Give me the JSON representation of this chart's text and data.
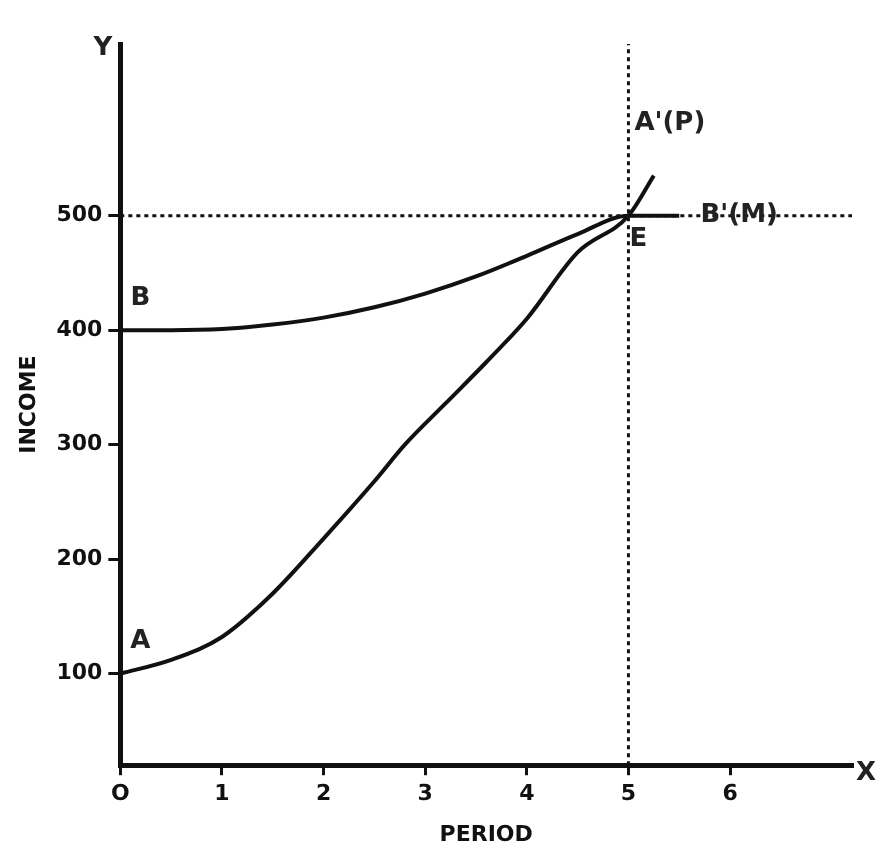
{
  "chart_data": {
    "type": "line",
    "xlabel": "PERIOD",
    "ylabel": "INCOME",
    "series": [
      {
        "color": "#111111",
        "x": [
          0,
          0.5,
          1,
          1.5,
          2,
          2.5,
          2.8,
          3.2,
          3.6,
          4,
          4.5,
          5,
          5.25
        ],
        "values": [
          100,
          112,
          132,
          170,
          218,
          268,
          300,
          336,
          372,
          410,
          468,
          500,
          535
        ]
      },
      {
        "color": "#111111",
        "x": [
          0,
          0.5,
          1,
          1.5,
          2,
          2.5,
          3,
          3.5,
          4,
          4.5,
          5,
          5.5
        ],
        "values": [
          400,
          400,
          401,
          405,
          411,
          420,
          432,
          447,
          465,
          484,
          500,
          500
        ]
      }
    ],
    "xlim": [
      0,
      7.2
    ],
    "ylim": [
      20,
      650
    ],
    "xticks": [
      {
        "value": 0,
        "label": "O"
      },
      1,
      2,
      3,
      4,
      5,
      6
    ],
    "yticks": [
      100,
      200,
      300,
      400,
      500
    ],
    "ref_lines": [
      {
        "axis": "y",
        "value": 500,
        "line_style": "dotted",
        "color": "#111111"
      },
      {
        "axis": "x",
        "value": 5,
        "line_style": "dotted",
        "color": "#111111"
      }
    ],
    "annotations": [
      {
        "text": "A",
        "x": 0,
        "y": 100
      },
      {
        "text": "B",
        "x": 0,
        "y": 400
      },
      {
        "text": "E",
        "x": 5,
        "y": 500
      },
      {
        "text": "A'(P)",
        "x": 5.25,
        "y": 535
      },
      {
        "text": "B'(M)",
        "x": 5.5,
        "y": 500
      },
      "Y",
      "X"
    ],
    "grid": false,
    "legend": false,
    "marker": "none",
    "line_style": "solid"
  }
}
